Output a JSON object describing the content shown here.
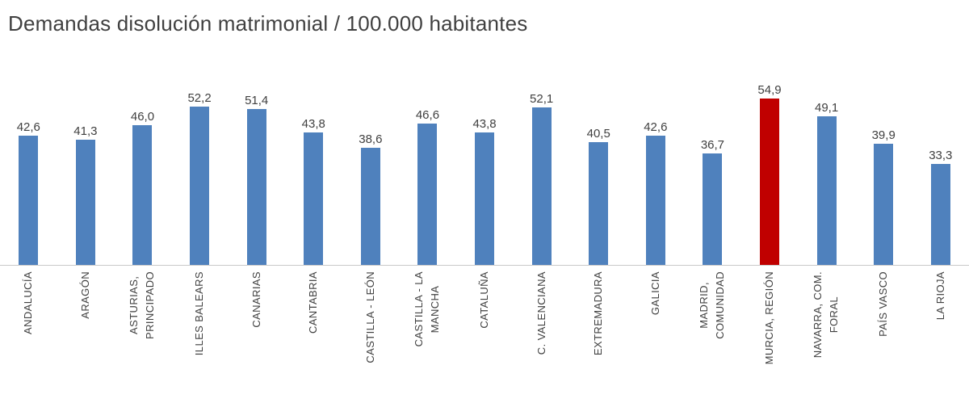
{
  "title": "Demandas disolución matrimonial / 100.000 habitantes",
  "chart_data": {
    "type": "bar",
    "title": "Demandas disolución matrimonial / 100.000 habitantes",
    "categories": [
      "ANDALUCÍA",
      "ARAGÓN",
      "ASTURIAS,\nPRINCIPADO",
      "ILLES BALEARS",
      "CANARIAS",
      "CANTABRIA",
      "CASTILLA - LEÓN",
      "CASTILLA - LA\nMANCHA",
      "CATALUÑA",
      "C. VALENCIANA",
      "EXTREMADURA",
      "GALICIA",
      "MADRID,\nCOMUNIDAD",
      "MURCIA, REGIÓN",
      "NAVARRA, COM.\nFORAL",
      "PAÍS VASCO",
      "LA RIOJA"
    ],
    "values": [
      42.6,
      41.3,
      46.0,
      52.2,
      51.4,
      43.8,
      38.6,
      46.6,
      43.8,
      52.1,
      40.5,
      42.6,
      36.7,
      54.9,
      49.1,
      39.9,
      33.3
    ],
    "value_labels": [
      "42,6",
      "41,3",
      "46,0",
      "52,2",
      "51,4",
      "43,8",
      "38,6",
      "46,6",
      "43,8",
      "52,1",
      "40,5",
      "42,6",
      "36,7",
      "54,9",
      "49,1",
      "39,9",
      "33,3"
    ],
    "highlight_index": 13,
    "colors": {
      "bar": "#4f81bd",
      "highlight": "#c00000",
      "axis_line": "#c9c9c9",
      "text": "#404040"
    },
    "xlabel": "",
    "ylabel": "",
    "ylim": [
      0,
      60
    ],
    "grid": false,
    "legend": false
  }
}
